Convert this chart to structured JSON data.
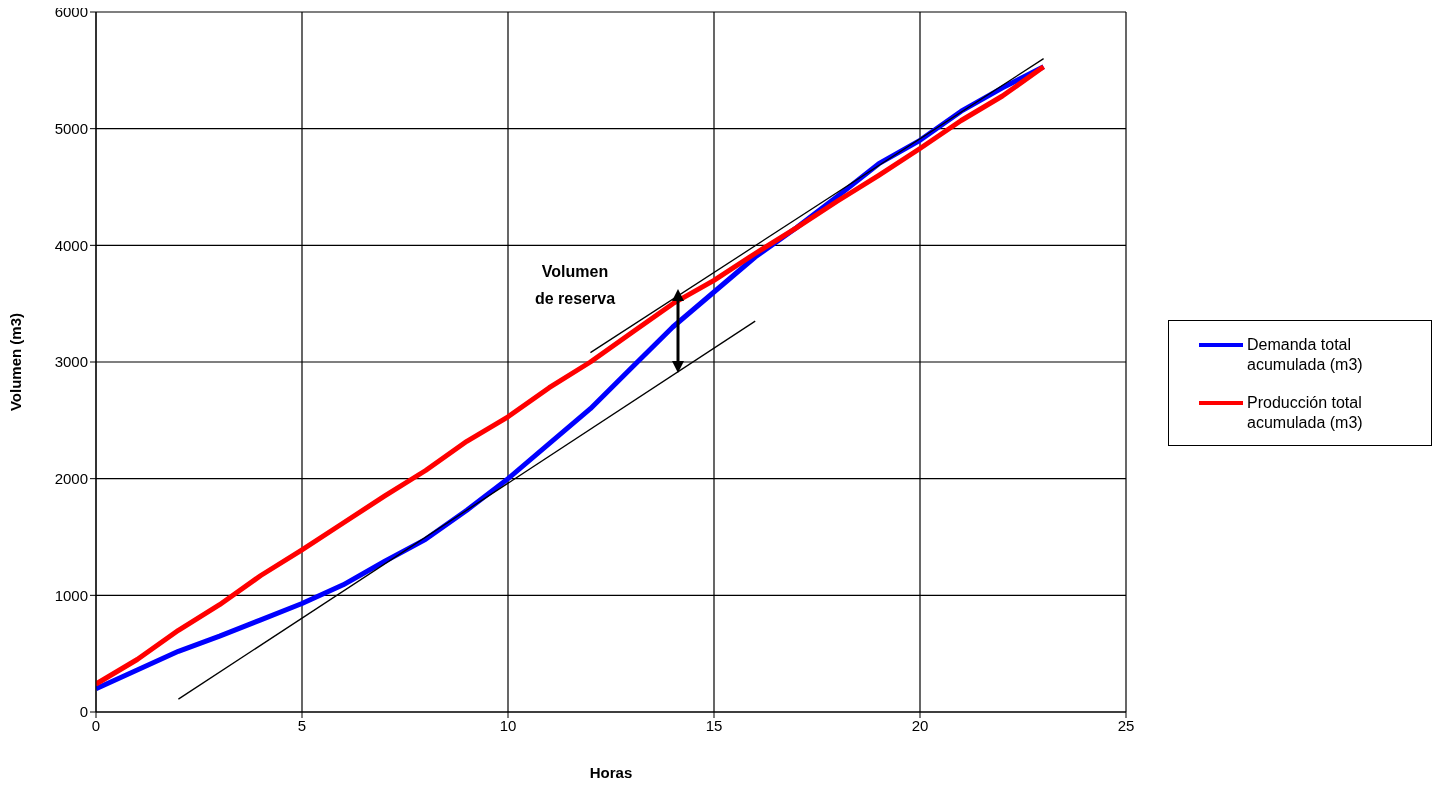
{
  "chart_data": {
    "type": "line",
    "xlabel": "Horas",
    "ylabel": "Volumen (m3)",
    "x": [
      0,
      1,
      2,
      3,
      4,
      5,
      6,
      7,
      8,
      9,
      10,
      11,
      12,
      13,
      14,
      15,
      16,
      17,
      18,
      19,
      20,
      21,
      22,
      23
    ],
    "series": [
      {
        "name": "Demanda total acumulada (m3)",
        "color": "#0000ff",
        "values": [
          200,
          360,
          520,
          650,
          790,
          930,
          1090,
          1290,
          1480,
          1730,
          2000,
          2300,
          2600,
          2950,
          3300,
          3600,
          3900,
          4150,
          4420,
          4700,
          4900,
          5150,
          5350,
          5530
        ]
      },
      {
        "name": "Producción total acumulada (m3)",
        "color": "#ff0000",
        "values": [
          240,
          450,
          700,
          920,
          1170,
          1390,
          1620,
          1850,
          2070,
          2320,
          2530,
          2780,
          3000,
          3250,
          3500,
          3700,
          3930,
          4150,
          4380,
          4600,
          4830,
          5070,
          5280,
          5530
        ]
      },
      {
        "type": "line",
        "color": "#000000",
        "x": [
          2,
          16
        ],
        "values": [
          110,
          3350
        ]
      },
      {
        "type": "line",
        "color": "#000000",
        "x": [
          12,
          23
        ],
        "values": [
          3080,
          5600
        ]
      }
    ],
    "xlim": [
      0,
      25
    ],
    "xticks": [
      0,
      5,
      10,
      15,
      20,
      25
    ],
    "ylim": [
      0,
      6000
    ],
    "yticks": [
      0,
      1000,
      2000,
      3000,
      4000,
      5000,
      6000
    ],
    "grid": true,
    "legend": "right",
    "marker": "none",
    "line_style": "solid",
    "annotations": [
      "Volumen de reserva"
    ]
  }
}
